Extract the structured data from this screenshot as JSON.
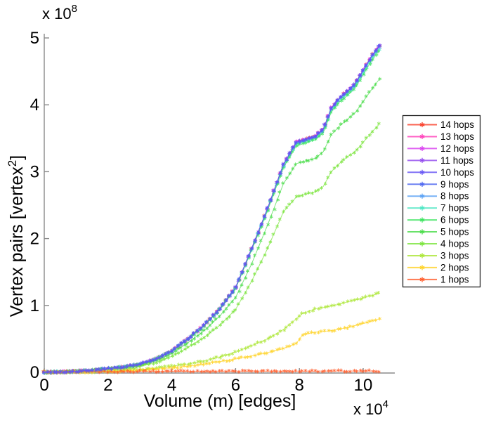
{
  "figure": {
    "y_scale_label": {
      "base": "x 10",
      "exp": "8"
    },
    "x_scale_label": {
      "base": "x 10",
      "exp": "4"
    },
    "xlabel": "Volume (m) [edges]",
    "ylabel": {
      "pre": "Vertex pairs [vertex",
      "sup": "2",
      "post": "]"
    },
    "axis_color": "#8a8a8a",
    "text_color": "#000000"
  },
  "legend": {
    "items": [
      {
        "label": "14 hops",
        "color": "#F93D28"
      },
      {
        "label": "13 hops",
        "color": "#FF3CB9"
      },
      {
        "label": "12 hops",
        "color": "#D93EF0"
      },
      {
        "label": "11 hops",
        "color": "#9148EE"
      },
      {
        "label": "10 hops",
        "color": "#6452F5"
      },
      {
        "label": "9 hops",
        "color": "#4A64F0"
      },
      {
        "label": "8 hops",
        "color": "#57A0F5"
      },
      {
        "label": "7 hops",
        "color": "#4BE6C3"
      },
      {
        "label": "6 hops",
        "color": "#3CE45F"
      },
      {
        "label": "5 hops",
        "color": "#46DC46"
      },
      {
        "label": "4 hops",
        "color": "#78E438"
      },
      {
        "label": "3 hops",
        "color": "#AAE632"
      },
      {
        "label": "2 hops",
        "color": "#FFD224"
      },
      {
        "label": "1 hops",
        "color": "#FF5A28"
      }
    ]
  },
  "chart_data": {
    "type": "line",
    "title": "",
    "xlabel": "Volume (m) [edges]",
    "ylabel": "Vertex pairs [vertex^2]",
    "x_unit_multiplier": 10000,
    "y_unit_multiplier": 100000000,
    "xlim": [
      0,
      11
    ],
    "ylim": [
      0,
      5.06
    ],
    "xticks": [
      0,
      2,
      4,
      6,
      8,
      10
    ],
    "yticks": [
      0,
      1,
      2,
      3,
      4,
      5
    ],
    "grid": false,
    "legend_position": "outside-right",
    "marker": "asterisk",
    "x": [
      0,
      0.5,
      1,
      1.5,
      2,
      2.5,
      3,
      3.5,
      4,
      4.5,
      5,
      5.5,
      6,
      6.5,
      7,
      7.5,
      7.9,
      8.1,
      8.5,
      8.75,
      9,
      9.25,
      9.5,
      9.75,
      10,
      10.25,
      10.5
    ],
    "series": [
      {
        "name": "1 hops",
        "color": "#FF5A28",
        "values": [
          0,
          0.005,
          0.008,
          0.01,
          0.012,
          0.013,
          0.014,
          0.015,
          0.016,
          0.016,
          0.017,
          0.017,
          0.018,
          0.018,
          0.018,
          0.019,
          0.019,
          0.019,
          0.019,
          0.019,
          0.02,
          0.02,
          0.02,
          0.02,
          0.02,
          0.02,
          0.02
        ]
      },
      {
        "name": "2 hops",
        "color": "#FFD224",
        "values": [
          0,
          0.001,
          0.003,
          0.007,
          0.013,
          0.021,
          0.032,
          0.048,
          0.068,
          0.092,
          0.125,
          0.16,
          0.2,
          0.245,
          0.295,
          0.355,
          0.43,
          0.56,
          0.6,
          0.61,
          0.625,
          0.645,
          0.67,
          0.7,
          0.73,
          0.765,
          0.8
        ]
      },
      {
        "name": "3 hops",
        "color": "#AAE632",
        "values": [
          0,
          0.002,
          0.005,
          0.01,
          0.018,
          0.028,
          0.042,
          0.062,
          0.09,
          0.125,
          0.17,
          0.23,
          0.3,
          0.4,
          0.5,
          0.64,
          0.8,
          0.88,
          0.95,
          0.97,
          0.99,
          1.02,
          1.05,
          1.08,
          1.11,
          1.145,
          1.18
        ]
      },
      {
        "name": "4 hops",
        "color": "#78E438",
        "values": [
          0,
          0.004,
          0.012,
          0.024,
          0.042,
          0.062,
          0.09,
          0.15,
          0.24,
          0.37,
          0.52,
          0.7,
          0.94,
          1.36,
          1.85,
          2.4,
          2.62,
          2.65,
          2.7,
          2.78,
          3.0,
          3.12,
          3.22,
          3.3,
          3.44,
          3.58,
          3.71
        ]
      },
      {
        "name": "5 hops",
        "color": "#46DC46",
        "values": [
          0,
          0.004,
          0.013,
          0.027,
          0.048,
          0.07,
          0.105,
          0.175,
          0.28,
          0.44,
          0.62,
          0.84,
          1.12,
          1.62,
          2.2,
          2.82,
          3.12,
          3.15,
          3.2,
          3.3,
          3.55,
          3.68,
          3.78,
          3.88,
          4.05,
          4.22,
          4.38
        ]
      },
      {
        "name": "6 hops",
        "color": "#3CE45F",
        "values": [
          0,
          0.005,
          0.015,
          0.03,
          0.054,
          0.079,
          0.118,
          0.197,
          0.315,
          0.492,
          0.69,
          0.936,
          1.251,
          1.822,
          2.413,
          3.063,
          3.388,
          3.418,
          3.477,
          3.585,
          3.891,
          4.039,
          4.137,
          4.255,
          4.452,
          4.649,
          4.807
        ]
      },
      {
        "name": "7 hops",
        "color": "#4BE6C3",
        "values": [
          0,
          0.005,
          0.015,
          0.03,
          0.055,
          0.079,
          0.119,
          0.198,
          0.317,
          0.496,
          0.694,
          0.941,
          1.259,
          1.833,
          2.428,
          3.082,
          3.409,
          3.439,
          3.498,
          3.607,
          3.914,
          4.063,
          4.162,
          4.281,
          4.479,
          4.678,
          4.836
        ]
      },
      {
        "name": "8 hops",
        "color": "#57A0F5",
        "values": [
          0,
          0.005,
          0.015,
          0.03,
          0.055,
          0.08,
          0.119,
          0.199,
          0.318,
          0.498,
          0.697,
          0.945,
          1.264,
          1.841,
          2.438,
          3.094,
          3.423,
          3.453,
          3.512,
          3.622,
          3.93,
          4.08,
          4.179,
          4.298,
          4.497,
          4.696,
          4.856
        ]
      },
      {
        "name": "9 hops",
        "color": "#4A64F0",
        "values": [
          0,
          0.005,
          0.015,
          0.03,
          0.055,
          0.08,
          0.12,
          0.2,
          0.319,
          0.499,
          0.699,
          0.948,
          1.267,
          1.846,
          2.445,
          3.104,
          3.433,
          3.463,
          3.523,
          3.633,
          3.942,
          4.092,
          4.192,
          4.311,
          4.511,
          4.711,
          4.87
        ]
      },
      {
        "name": "10 hops",
        "color": "#6452F5",
        "values": [
          0,
          0.005,
          0.015,
          0.03,
          0.055,
          0.08,
          0.12,
          0.2,
          0.32,
          0.5,
          0.7,
          0.95,
          1.27,
          1.85,
          2.45,
          3.11,
          3.44,
          3.47,
          3.53,
          3.64,
          3.95,
          4.1,
          4.2,
          4.32,
          4.52,
          4.72,
          4.88
        ]
      },
      {
        "name": "11 hops",
        "color": "#9148EE",
        "values": [
          0,
          0.005,
          0.015,
          0.03,
          0.055,
          0.08,
          0.12,
          0.2,
          0.32,
          0.5,
          0.7,
          0.95,
          1.27,
          1.85,
          2.45,
          3.11,
          3.44,
          3.47,
          3.53,
          3.64,
          3.95,
          4.1,
          4.2,
          4.32,
          4.52,
          4.72,
          4.88
        ]
      },
      {
        "name": "12 hops",
        "color": "#D93EF0",
        "values": [
          0,
          0.005,
          0.015,
          0.03,
          0.055,
          0.08,
          0.12,
          0.2,
          0.32,
          0.5,
          0.7,
          0.95,
          1.27,
          1.85,
          2.45,
          3.11,
          3.44,
          3.47,
          3.53,
          3.64,
          3.95,
          4.1,
          4.2,
          4.32,
          4.52,
          4.72,
          4.88
        ]
      },
      {
        "name": "13 hops",
        "color": "#FF3CB9",
        "values": [
          0,
          0.005,
          0.015,
          0.03,
          0.055,
          0.08,
          0.12,
          0.2,
          0.32,
          0.5,
          0.7,
          0.95,
          1.27,
          1.85,
          2.45,
          3.11,
          3.44,
          3.47,
          3.53,
          3.64,
          3.95,
          4.1,
          4.2,
          4.32,
          4.52,
          4.72,
          4.88
        ]
      },
      {
        "name": "14 hops",
        "color": "#F93D28",
        "values": [
          0,
          0.005,
          0.015,
          0.03,
          0.055,
          0.08,
          0.12,
          0.2,
          0.32,
          0.5,
          0.7,
          0.95,
          1.27,
          1.85,
          2.45,
          3.11,
          3.44,
          3.47,
          3.53,
          3.64,
          3.95,
          4.1,
          4.2,
          4.32,
          4.52,
          4.72,
          4.88
        ]
      }
    ],
    "draw_order": [
      "14 hops",
      "13 hops",
      "12 hops",
      "11 hops",
      "8 hops",
      "7 hops",
      "6 hops",
      "5 hops",
      "4 hops",
      "3 hops",
      "2 hops",
      "1 hops",
      "9 hops",
      "10 hops"
    ]
  }
}
